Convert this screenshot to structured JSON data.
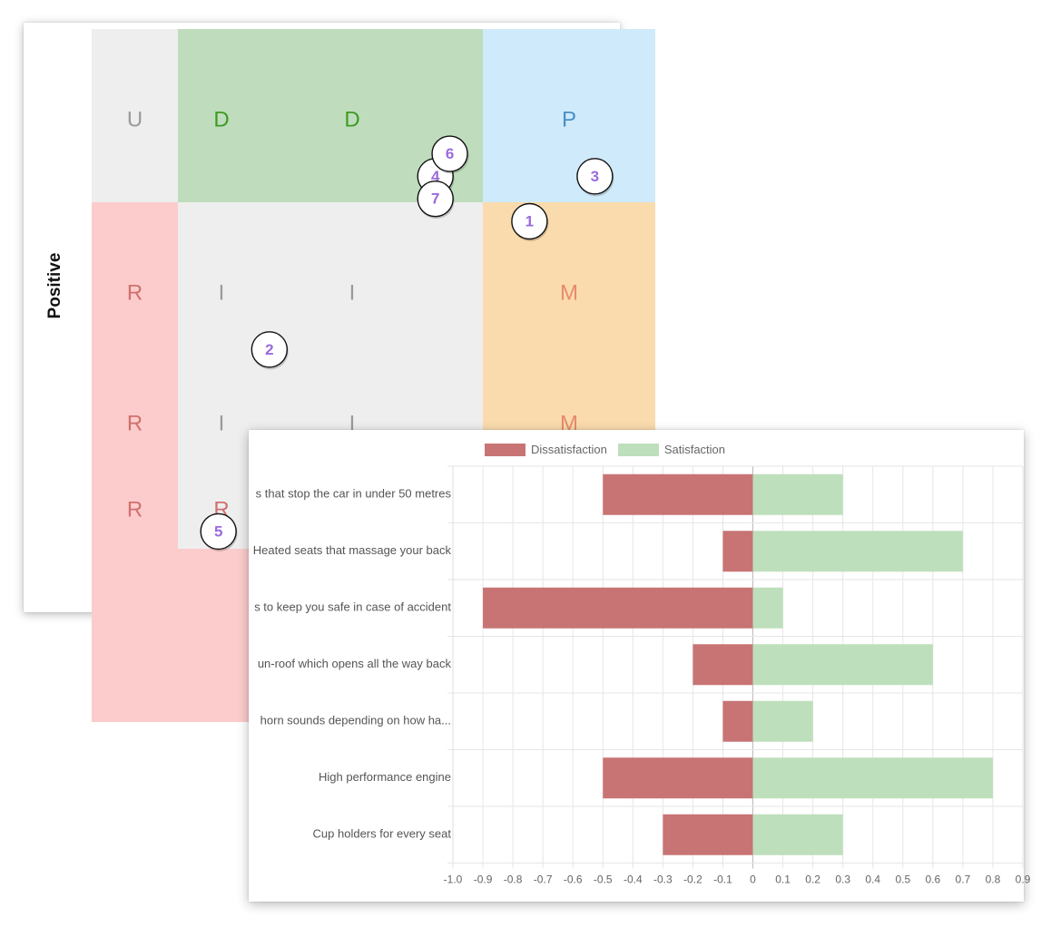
{
  "matrix": {
    "y_axis_label": "Positive",
    "cells": [
      {
        "row": 0,
        "col": 0,
        "letter": "U",
        "category": "indifferent"
      },
      {
        "row": 0,
        "col": 1,
        "letter": "D",
        "category": "delighter"
      },
      {
        "row": 0,
        "col": 2,
        "letter": "D",
        "category": "delighter"
      },
      {
        "row": 0,
        "col": 3,
        "letter": "P",
        "category": "performance"
      },
      {
        "row": 1,
        "col": 0,
        "letter": "R",
        "category": "reverse"
      },
      {
        "row": 1,
        "col": 1,
        "letter": "I",
        "category": "indifferent"
      },
      {
        "row": 1,
        "col": 2,
        "letter": "I",
        "category": "indifferent"
      },
      {
        "row": 1,
        "col": 3,
        "letter": "M",
        "category": "must-be"
      },
      {
        "row": 2,
        "col": 0,
        "letter": "R",
        "category": "reverse"
      },
      {
        "row": 2,
        "col": 1,
        "letter": "I",
        "category": "indifferent"
      },
      {
        "row": 2,
        "col": 2,
        "letter": "I",
        "category": "indifferent"
      },
      {
        "row": 2,
        "col": 3,
        "letter": "M",
        "category": "must-be"
      },
      {
        "row": 3,
        "col": 0,
        "letter": "R",
        "category": "reverse"
      },
      {
        "row": 3,
        "col": 1,
        "letter": "R",
        "category": "reverse"
      },
      {
        "row": 3,
        "col": 2,
        "letter": "",
        "category": "reverse"
      },
      {
        "row": 3,
        "col": 3,
        "letter": "",
        "category": "reverse"
      }
    ],
    "colors": {
      "indifferent": {
        "fill": "#eeeeee",
        "text": "#9a9a9a"
      },
      "delighter": {
        "fill": "#bfddbc",
        "text": "#3f9a24"
      },
      "performance": {
        "fill": "#cfeafa",
        "text": "#4b8fc6"
      },
      "reverse": {
        "fill": "#fccccc",
        "text": "#d0706f"
      },
      "must-be": {
        "fill": "#fadbad",
        "text": "#e88a6c"
      }
    },
    "markers": [
      {
        "id": "1",
        "col_pos": 3.35,
        "row_pos": 1.11
      },
      {
        "id": "2",
        "col_pos": 1.36,
        "row_pos": 1.85
      },
      {
        "id": "3",
        "col_pos": 3.85,
        "row_pos": 0.85
      },
      {
        "id": "4",
        "col_pos": 2.63,
        "row_pos": 0.85
      },
      {
        "id": "5",
        "col_pos": 0.97,
        "row_pos": 2.9
      },
      {
        "id": "6",
        "col_pos": 2.74,
        "row_pos": 0.72
      },
      {
        "id": "7",
        "col_pos": 2.63,
        "row_pos": 0.98
      }
    ],
    "marker_text_color": "#9b6bdc"
  },
  "chart_data": {
    "type": "bar",
    "orientation": "horizontal",
    "stacked": true,
    "categories": [
      "s that stop the car in under 50 metres",
      "Heated seats that massage your back",
      "s to keep you safe in case of accident",
      "un-roof which opens all the way back",
      "horn sounds depending on how ha...",
      "High performance engine",
      "Cup holders for every seat"
    ],
    "series": [
      {
        "name": "Dissatisfaction",
        "color": "#c87474",
        "values": [
          -0.5,
          -0.1,
          -0.9,
          -0.2,
          -0.1,
          -0.5,
          -0.3
        ]
      },
      {
        "name": "Satisfaction",
        "color": "#bedfbc",
        "values": [
          0.3,
          0.7,
          0.1,
          0.6,
          0.2,
          0.8,
          0.3
        ]
      }
    ],
    "xlim": [
      -1.0,
      0.9
    ],
    "x_ticks": [
      "-1.0",
      "-0.9",
      "-0.8",
      "-0.7",
      "-0.6",
      "-0.5",
      "-0.4",
      "-0.3",
      "-0.2",
      "-0.1",
      "0",
      "0.1",
      "0.2",
      "0.3",
      "0.4",
      "0.5",
      "0.6",
      "0.7",
      "0.8",
      "0.9"
    ],
    "grid": true,
    "legend_position": "top"
  }
}
